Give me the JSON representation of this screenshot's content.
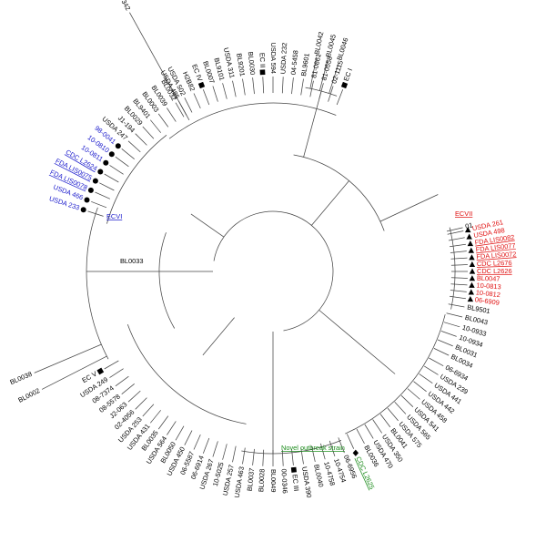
{
  "colors": {
    "branch": "#444444",
    "default": "#000000",
    "ecvi": "#1a1acc",
    "ecvii": "#e01010",
    "novel": "#1c8c1c"
  },
  "clade_labels": {
    "ecvi": "ECVI",
    "ecvii": "ECVII",
    "novel": "Novel outbreak strain"
  },
  "center_label": "BL0033",
  "leaves": [
    {
      "label": "BL0042",
      "color": "default",
      "marker": ""
    },
    {
      "label": "BL0045",
      "color": "default",
      "marker": ""
    },
    {
      "label": "BL0046",
      "color": "default",
      "marker": ""
    },
    {
      "label": "01",
      "color": "default",
      "marker": ""
    },
    {
      "label": "USDA 261",
      "color": "ecvii",
      "marker": "triangle",
      "underline": false
    },
    {
      "label": "USDA 498",
      "color": "ecvii",
      "marker": "triangle",
      "underline": false
    },
    {
      "label": "FDA LIS0082",
      "color": "ecvii",
      "marker": "triangle",
      "underline": true
    },
    {
      "label": "FDA LIS0077",
      "color": "ecvii",
      "marker": "triangle",
      "underline": true
    },
    {
      "label": "FDA LIS0072",
      "color": "ecvii",
      "marker": "triangle",
      "underline": true
    },
    {
      "label": "CDC L2676",
      "color": "ecvii",
      "marker": "triangle",
      "underline": true
    },
    {
      "label": "CDC L2626",
      "color": "ecvii",
      "marker": "triangle",
      "underline": true
    },
    {
      "label": "BL0047",
      "color": "ecvii",
      "marker": "triangle",
      "underline": false
    },
    {
      "label": "10-0813",
      "color": "ecvii",
      "marker": "triangle",
      "underline": false
    },
    {
      "label": "10-0812",
      "color": "ecvii",
      "marker": "triangle",
      "underline": false
    },
    {
      "label": "06-6909",
      "color": "ecvii",
      "marker": "triangle",
      "underline": false
    },
    {
      "label": "BL9501",
      "color": "default",
      "marker": ""
    },
    {
      "label": "BL0043",
      "color": "default",
      "marker": ""
    },
    {
      "label": "10-0933",
      "color": "default",
      "marker": ""
    },
    {
      "label": "10-0934",
      "color": "default",
      "marker": ""
    },
    {
      "label": "BL0031",
      "color": "default",
      "marker": ""
    },
    {
      "label": "BL0034",
      "color": "default",
      "marker": ""
    },
    {
      "label": "06-6934",
      "color": "default",
      "marker": ""
    },
    {
      "label": "USDA 239",
      "color": "default",
      "marker": ""
    },
    {
      "label": "USDA 441",
      "color": "default",
      "marker": ""
    },
    {
      "label": "USDA 442",
      "color": "default",
      "marker": ""
    },
    {
      "label": "USDA 458",
      "color": "default",
      "marker": ""
    },
    {
      "label": "USDA 541",
      "color": "default",
      "marker": ""
    },
    {
      "label": "USDA 565",
      "color": "default",
      "marker": ""
    },
    {
      "label": "USDA 575",
      "color": "default",
      "marker": ""
    },
    {
      "label": "BL0041",
      "color": "default",
      "marker": ""
    },
    {
      "label": "USDA 350",
      "color": "default",
      "marker": ""
    },
    {
      "label": "USDA 470",
      "color": "default",
      "marker": ""
    },
    {
      "label": "BL0036",
      "color": "default",
      "marker": ""
    },
    {
      "label": "CDC L2625",
      "color": "novel",
      "marker": "diamond",
      "underline": true
    },
    {
      "label": "06-6956",
      "color": "default",
      "marker": ""
    },
    {
      "label": "10-4754",
      "color": "default",
      "marker": ""
    },
    {
      "label": "10-4758",
      "color": "default",
      "marker": ""
    },
    {
      "label": "BL0040",
      "color": "default",
      "marker": ""
    },
    {
      "label": "USDA 390",
      "color": "default",
      "marker": ""
    },
    {
      "label": "EC III",
      "color": "default",
      "marker": "square"
    },
    {
      "label": "00-0346",
      "color": "default",
      "marker": ""
    },
    {
      "label": "BL0049",
      "color": "default",
      "marker": ""
    },
    {
      "label": "BL0028",
      "color": "default",
      "marker": ""
    },
    {
      "label": "BL0037",
      "color": "default",
      "marker": ""
    },
    {
      "label": "USDA 463",
      "color": "default",
      "marker": ""
    },
    {
      "label": "USDA 257",
      "color": "default",
      "marker": ""
    },
    {
      "label": "10-5025",
      "color": "default",
      "marker": ""
    },
    {
      "label": "USDA 267",
      "color": "default",
      "marker": ""
    },
    {
      "label": "06-6914",
      "color": "default",
      "marker": ""
    },
    {
      "label": "06-5587",
      "color": "default",
      "marker": ""
    },
    {
      "label": "USDA 450",
      "color": "default",
      "marker": ""
    },
    {
      "label": "BL0050",
      "color": "default",
      "marker": ""
    },
    {
      "label": "USDA 564",
      "color": "default",
      "marker": ""
    },
    {
      "label": "BL0035",
      "color": "default",
      "marker": ""
    },
    {
      "label": "USDA 431",
      "color": "default",
      "marker": ""
    },
    {
      "label": "USDA 253",
      "color": "default",
      "marker": ""
    },
    {
      "label": "02-4056",
      "color": "default",
      "marker": ""
    },
    {
      "label": "J2-063",
      "color": "default",
      "marker": ""
    },
    {
      "label": "08-5578",
      "color": "default",
      "marker": ""
    },
    {
      "label": "08-7374",
      "color": "default",
      "marker": ""
    },
    {
      "label": "USDA 249",
      "color": "default",
      "marker": ""
    },
    {
      "label": "EC V",
      "color": "default",
      "marker": "square"
    },
    {
      "label": "BL0002",
      "color": "default",
      "marker": ""
    },
    {
      "label": "BL0038",
      "color": "default",
      "marker": ""
    },
    {
      "label": "USDA 233",
      "color": "ecvi",
      "marker": "circle",
      "underline": false
    },
    {
      "label": "USDA 466",
      "color": "ecvi",
      "marker": "circle",
      "underline": false
    },
    {
      "label": "FDA LIS0078",
      "color": "ecvi",
      "marker": "circle",
      "underline": true
    },
    {
      "label": "FDA LIS0075",
      "color": "ecvi",
      "marker": "circle",
      "underline": true
    },
    {
      "label": "CDC L2624",
      "color": "ecvi",
      "marker": "circle",
      "underline": true
    },
    {
      "label": "10-0811",
      "color": "ecvi",
      "marker": "circle",
      "underline": false
    },
    {
      "label": "10-0810",
      "color": "ecvi",
      "marker": "circle",
      "underline": false
    },
    {
      "label": "98-0041",
      "color": "ecvi",
      "marker": "circle",
      "underline": false
    },
    {
      "label": "USDA 247",
      "color": "default",
      "marker": ""
    },
    {
      "label": "J1-194",
      "color": "default",
      "marker": ""
    },
    {
      "label": "BL0029",
      "color": "default",
      "marker": ""
    },
    {
      "label": "BL9401",
      "color": "default",
      "marker": ""
    },
    {
      "label": "BL0003",
      "color": "default",
      "marker": ""
    },
    {
      "label": "BL0039",
      "color": "default",
      "marker": ""
    },
    {
      "label": "BL0032",
      "color": "default",
      "marker": ""
    },
    {
      "label": "USDA 502",
      "color": "default",
      "marker": ""
    },
    {
      "label": "H2B82",
      "color": "default",
      "marker": ""
    },
    {
      "label": "EC IV",
      "color": "default",
      "marker": "square"
    },
    {
      "label": "BL0007",
      "color": "default",
      "marker": ""
    },
    {
      "label": "BL9101",
      "color": "default",
      "marker": ""
    },
    {
      "label": "USDA 311",
      "color": "default",
      "marker": ""
    },
    {
      "label": "BL9201",
      "color": "default",
      "marker": ""
    },
    {
      "label": "BL0030",
      "color": "default",
      "marker": ""
    },
    {
      "label": "EC II",
      "color": "default",
      "marker": "square"
    },
    {
      "label": "USDA 594",
      "color": "default",
      "marker": ""
    },
    {
      "label": "USDA 232",
      "color": "default",
      "marker": ""
    },
    {
      "label": "04-5458",
      "color": "default",
      "marker": ""
    },
    {
      "label": "BL9601",
      "color": "default",
      "marker": ""
    },
    {
      "label": "81-0861",
      "color": "default",
      "marker": ""
    },
    {
      "label": "81-0558",
      "color": "default",
      "marker": ""
    },
    {
      "label": "02-1115",
      "color": "default",
      "marker": ""
    },
    {
      "label": "EC I",
      "color": "default",
      "marker": "square"
    },
    {
      "label": "USDA 485",
      "color": "default",
      "marker": ""
    },
    {
      "label": "USDA 342",
      "color": "default",
      "marker": ""
    }
  ]
}
